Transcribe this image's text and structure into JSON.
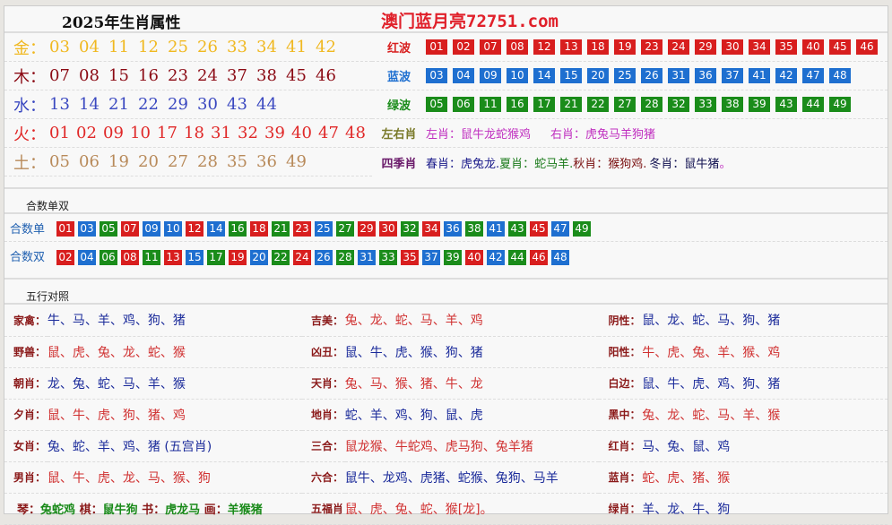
{
  "title": "2025年生肖属性",
  "site": "澳门蓝月亮72751.com",
  "colors": {
    "red": "#d81e1e",
    "blue": "#1e6fd0",
    "green": "#1a8c1a"
  },
  "elements": [
    {
      "label": "金：",
      "color": "#f0b820",
      "nums": [
        "03",
        "04",
        "11",
        "12",
        "25",
        "26",
        "33",
        "34",
        "41",
        "42"
      ]
    },
    {
      "label": "木：",
      "color": "#8b0a14",
      "nums": [
        "07",
        "08",
        "15",
        "16",
        "23",
        "24",
        "37",
        "38",
        "45",
        "46"
      ]
    },
    {
      "label": "水：",
      "color": "#3a48c0",
      "nums": [
        "13",
        "14",
        "21",
        "22",
        "29",
        "30",
        "43",
        "44"
      ]
    },
    {
      "label": "火：",
      "color": "#e02828",
      "nums": [
        "01",
        "02",
        "09",
        "10",
        "17",
        "18",
        "31",
        "32",
        "39",
        "40",
        "47",
        "48"
      ]
    },
    {
      "label": "土：",
      "color": "#b88a5a",
      "nums": [
        "05",
        "06",
        "19",
        "20",
        "27",
        "28",
        "35",
        "36",
        "49"
      ]
    }
  ],
  "waves": [
    {
      "label": "红波",
      "key": "red",
      "nums": [
        "01",
        "02",
        "07",
        "08",
        "12",
        "13",
        "18",
        "19",
        "23",
        "24",
        "29",
        "30",
        "34",
        "35",
        "40",
        "45",
        "46"
      ]
    },
    {
      "label": "蓝波",
      "key": "blue",
      "nums": [
        "03",
        "04",
        "09",
        "10",
        "14",
        "15",
        "20",
        "25",
        "26",
        "31",
        "36",
        "37",
        "41",
        "42",
        "47",
        "48"
      ]
    },
    {
      "label": "绿波",
      "key": "green",
      "nums": [
        "05",
        "06",
        "11",
        "16",
        "17",
        "21",
        "22",
        "27",
        "28",
        "32",
        "33",
        "38",
        "39",
        "43",
        "44",
        "49"
      ]
    }
  ],
  "left_right": {
    "label": "左右肖",
    "left": "左肖：鼠牛龙蛇猴鸡",
    "right": "右肖：虎兔马羊狗猪"
  },
  "seasons": {
    "label": "四季肖",
    "spring": "春肖：虎兔龙.",
    "summer": "夏肖：蛇马羊.",
    "autumn": "秋肖：猴狗鸡.",
    "winter": "冬肖：鼠牛猪",
    "end": "。"
  },
  "heshu": {
    "title": "合数单双",
    "odd": {
      "label": "合数单",
      "nums": [
        "01",
        "03",
        "05",
        "07",
        "09",
        "10",
        "12",
        "14",
        "16",
        "18",
        "21",
        "23",
        "25",
        "27",
        "29",
        "30",
        "32",
        "34",
        "36",
        "38",
        "41",
        "43",
        "45",
        "47",
        "49"
      ]
    },
    "even": {
      "label": "合数双",
      "nums": [
        "02",
        "04",
        "06",
        "08",
        "11",
        "13",
        "15",
        "17",
        "19",
        "20",
        "22",
        "24",
        "26",
        "28",
        "31",
        "33",
        "35",
        "37",
        "39",
        "40",
        "42",
        "44",
        "46",
        "48"
      ]
    }
  },
  "wuxing": {
    "title": "五行对照",
    "rows": [
      [
        {
          "k": "家禽：",
          "v": "牛、马、羊、鸡、狗、猪",
          "c": "blue"
        },
        {
          "k": "吉美：",
          "v": "兔、龙、蛇、马、羊、鸡",
          "c": "red"
        },
        {
          "k": "阴性：",
          "v": "鼠、龙、蛇、马、狗、猪",
          "c": "blue"
        }
      ],
      [
        {
          "k": "野兽：",
          "v": "鼠、虎、兔、龙、蛇、猴",
          "c": "red"
        },
        {
          "k": "凶丑：",
          "v": "鼠、牛、虎、猴、狗、猪",
          "c": "blue"
        },
        {
          "k": "阳性：",
          "v": "牛、虎、兔、羊、猴、鸡",
          "c": "red"
        }
      ],
      [
        {
          "k": "朝肖：",
          "v": "龙、兔、蛇、马、羊、猴",
          "c": "blue"
        },
        {
          "k": "天肖：",
          "v": "兔、马、猴、猪、牛、龙",
          "c": "red"
        },
        {
          "k": "白边：",
          "v": "鼠、牛、虎、鸡、狗、猪",
          "c": "blue"
        }
      ],
      [
        {
          "k": "夕肖：",
          "v": "鼠、牛、虎、狗、猪、鸡",
          "c": "red"
        },
        {
          "k": "地肖：",
          "v": "蛇、羊、鸡、狗、鼠、虎",
          "c": "blue"
        },
        {
          "k": "黑中：",
          "v": "兔、龙、蛇、马、羊、猴",
          "c": "red"
        }
      ],
      [
        {
          "k": "女肖：",
          "v": "兔、蛇、羊、鸡、猪 (五宫肖)",
          "c": "blue"
        },
        {
          "k": "三合：",
          "v": "鼠龙猴、牛蛇鸡、虎马狗、兔羊猪",
          "c": "red"
        },
        {
          "k": "红肖：",
          "v": "马、兔、鼠、鸡",
          "c": "blue"
        }
      ],
      [
        {
          "k": "男肖：",
          "v": "鼠、牛、虎、龙、马、猴、狗",
          "c": "red"
        },
        {
          "k": "六合：",
          "v": "鼠牛、龙鸡、虎猪、蛇猴、兔狗、马羊",
          "c": "blue"
        },
        {
          "k": "蓝肖：",
          "v": "蛇、虎、猪、猴",
          "c": "red"
        }
      ]
    ],
    "last": {
      "qin": "琴：",
      "qin_v": "兔蛇鸡",
      "qi": "棋：",
      "qi_v": "鼠牛狗",
      "shu": "书：",
      "shu_v": "虎龙马",
      "hua": "画：",
      "hua_v": "羊猴猪",
      "wufu": "五福肖",
      "wufu_v": "鼠、虎、兔、蛇、猴[龙]。",
      "green": "绿肖：",
      "green_v": "羊、龙、牛、狗"
    }
  }
}
